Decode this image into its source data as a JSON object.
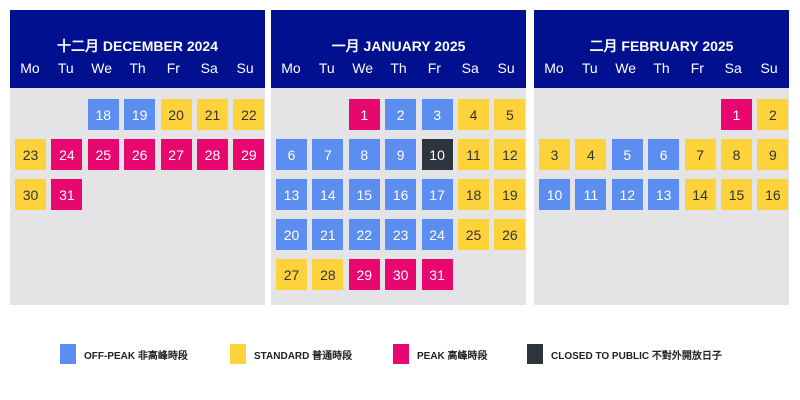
{
  "colors": {
    "off": "#5b8ef0",
    "std": "#fdd23a",
    "peak": "#e8076e",
    "closed": "#2d343d"
  },
  "weekdays": [
    "Mo",
    "Tu",
    "We",
    "Th",
    "Fr",
    "Sa",
    "Su"
  ],
  "months": [
    {
      "title": "十二月 DECEMBER 2024",
      "start_col": 2,
      "first_day": 18,
      "statuses": [
        "off",
        "off",
        "std",
        "std",
        "std",
        "std",
        "peak",
        "peak",
        "peak",
        "peak",
        "peak",
        "peak",
        "std",
        "peak"
      ]
    },
    {
      "title": "一月 JANUARY 2025",
      "start_col": 2,
      "first_day": 1,
      "statuses": [
        "peak",
        "off",
        "off",
        "std",
        "std",
        "off",
        "off",
        "off",
        "off",
        "closed",
        "std",
        "std",
        "off",
        "off",
        "off",
        "off",
        "off",
        "std",
        "std",
        "off",
        "off",
        "off",
        "off",
        "off",
        "std",
        "std",
        "std",
        "std",
        "peak",
        "peak",
        "peak"
      ]
    },
    {
      "title": "二月 FEBRUARY 2025",
      "start_col": 5,
      "first_day": 1,
      "statuses": [
        "peak",
        "std",
        "std",
        "std",
        "off",
        "off",
        "std",
        "std",
        "std",
        "off",
        "off",
        "off",
        "off",
        "std",
        "std",
        "std"
      ]
    }
  ],
  "legend": [
    {
      "key": "off",
      "label": "OFF-PEAK 非高峰時段"
    },
    {
      "key": "std",
      "label": "STANDARD 普通時段"
    },
    {
      "key": "peak",
      "label": "PEAK 高峰時段"
    },
    {
      "key": "closed",
      "label": "CLOSED TO PUBLIC 不對外開放日子"
    }
  ]
}
